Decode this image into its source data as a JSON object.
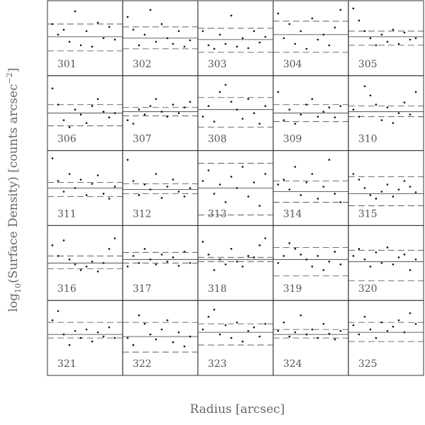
{
  "figure": {
    "xlabel": "Radius [arcsec]",
    "ylabel": {
      "base": "log",
      "sub": "10",
      "mid": "(Surface Density) [counts arcsec",
      "sup": "−2",
      "end": "]"
    }
  },
  "chart_data": [
    {
      "type": "scatter",
      "label": "301",
      "xlim": [
        0,
        1
      ],
      "ylim": [
        0,
        1
      ],
      "mean": 0.52,
      "dashed": [
        0.32,
        0.7
      ],
      "x": [
        0.04,
        0.12,
        0.2,
        0.28,
        0.36,
        0.44,
        0.52,
        0.6,
        0.68,
        0.76,
        0.84,
        0.92
      ],
      "values": [
        0.7,
        0.55,
        0.62,
        0.45,
        0.88,
        0.4,
        0.6,
        0.38,
        0.72,
        0.5,
        0.66,
        0.48
      ]
    },
    {
      "type": "scatter",
      "label": "302",
      "xlim": [
        0,
        1
      ],
      "ylim": [
        0,
        1
      ],
      "mean": 0.5,
      "dashed": [
        0.35,
        0.66
      ],
      "x": [
        0.04,
        0.12,
        0.2,
        0.28,
        0.36,
        0.44,
        0.52,
        0.6,
        0.68,
        0.76,
        0.84,
        0.92
      ],
      "values": [
        0.8,
        0.62,
        0.4,
        0.55,
        0.9,
        0.45,
        0.7,
        0.5,
        0.42,
        0.6,
        0.38,
        0.47
      ]
    },
    {
      "type": "scatter",
      "label": "303",
      "xlim": [
        0,
        1
      ],
      "ylim": [
        0,
        1
      ],
      "mean": 0.48,
      "dashed": [
        0.3,
        0.64
      ],
      "x": [
        0.04,
        0.12,
        0.2,
        0.28,
        0.36,
        0.44,
        0.52,
        0.6,
        0.68,
        0.76,
        0.84,
        0.92
      ],
      "values": [
        0.6,
        0.4,
        0.35,
        0.55,
        0.42,
        0.82,
        0.38,
        0.5,
        0.36,
        0.6,
        0.44,
        0.52
      ]
    },
    {
      "type": "scatter",
      "label": "304",
      "xlim": [
        0,
        1
      ],
      "ylim": [
        0,
        1
      ],
      "mean": 0.55,
      "dashed": [
        0.3,
        0.74
      ],
      "x": [
        0.04,
        0.12,
        0.2,
        0.28,
        0.36,
        0.44,
        0.52,
        0.6,
        0.68,
        0.76,
        0.84,
        0.92
      ],
      "values": [
        0.85,
        0.5,
        0.7,
        0.42,
        0.6,
        0.35,
        0.78,
        0.48,
        0.55,
        0.4,
        0.65,
        0.9
      ]
    },
    {
      "type": "scatter",
      "label": "305",
      "xlim": [
        0,
        1
      ],
      "ylim": [
        0,
        1
      ],
      "mean": 0.52,
      "dashed": [
        0.4,
        0.6
      ],
      "x": [
        0.04,
        0.12,
        0.2,
        0.28,
        0.36,
        0.44,
        0.52,
        0.6,
        0.68,
        0.76,
        0.84,
        0.92
      ],
      "values": [
        0.92,
        0.75,
        0.6,
        0.5,
        0.4,
        0.55,
        0.45,
        0.62,
        0.42,
        0.58,
        0.48,
        0.5
      ]
    },
    {
      "type": "scatter",
      "label": "306",
      "xlim": [
        0,
        1
      ],
      "ylim": [
        0,
        1
      ],
      "mean": 0.5,
      "dashed": [
        0.32,
        0.62
      ],
      "x": [
        0.04,
        0.12,
        0.2,
        0.28,
        0.36,
        0.44,
        0.52,
        0.6,
        0.68,
        0.76,
        0.84,
        0.92
      ],
      "values": [
        0.85,
        0.62,
        0.4,
        0.3,
        0.55,
        0.48,
        0.36,
        0.6,
        0.7,
        0.52,
        0.44,
        0.5
      ]
    },
    {
      "type": "scatter",
      "label": "307",
      "xlim": [
        0,
        1
      ],
      "ylim": [
        0,
        1
      ],
      "mean": 0.52,
      "dashed": [
        0.46,
        0.58
      ],
      "x": [
        0.04,
        0.12,
        0.2,
        0.28,
        0.36,
        0.44,
        0.52,
        0.6,
        0.68,
        0.76,
        0.84,
        0.92
      ],
      "values": [
        0.4,
        0.35,
        0.55,
        0.48,
        0.6,
        0.7,
        0.52,
        0.45,
        0.62,
        0.5,
        0.58,
        0.66
      ]
    },
    {
      "type": "scatter",
      "label": "308",
      "xlim": [
        0,
        1
      ],
      "ylim": [
        0,
        1
      ],
      "mean": 0.55,
      "dashed": [
        0.3,
        0.72
      ],
      "x": [
        0.04,
        0.12,
        0.2,
        0.28,
        0.36,
        0.44,
        0.52,
        0.6,
        0.68,
        0.76,
        0.84,
        0.92
      ],
      "values": [
        0.45,
        0.6,
        0.38,
        0.8,
        0.9,
        0.66,
        0.55,
        0.42,
        0.7,
        0.5,
        0.35,
        0.6
      ]
    },
    {
      "type": "scatter",
      "label": "309",
      "xlim": [
        0,
        1
      ],
      "ylim": [
        0,
        1
      ],
      "mean": 0.5,
      "dashed": [
        0.38,
        0.62
      ],
      "x": [
        0.04,
        0.12,
        0.2,
        0.28,
        0.36,
        0.44,
        0.52,
        0.6,
        0.68,
        0.76,
        0.84,
        0.92
      ],
      "values": [
        0.8,
        0.4,
        0.55,
        0.35,
        0.48,
        0.62,
        0.7,
        0.45,
        0.52,
        0.58,
        0.44,
        0.6
      ]
    },
    {
      "type": "scatter",
      "label": "310",
      "xlim": [
        0,
        1
      ],
      "ylim": [
        0,
        1
      ],
      "mean": 0.52,
      "dashed": [
        0.45,
        0.6
      ],
      "x": [
        0.04,
        0.12,
        0.2,
        0.28,
        0.36,
        0.44,
        0.52,
        0.6,
        0.68,
        0.76,
        0.84,
        0.92
      ],
      "values": [
        0.55,
        0.45,
        0.88,
        0.75,
        0.62,
        0.4,
        0.58,
        0.36,
        0.5,
        0.65,
        0.48,
        0.8
      ]
    },
    {
      "type": "scatter",
      "label": "311",
      "xlim": [
        0,
        1
      ],
      "ylim": [
        0,
        1
      ],
      "mean": 0.5,
      "dashed": [
        0.38,
        0.58
      ],
      "x": [
        0.04,
        0.12,
        0.2,
        0.28,
        0.36,
        0.44,
        0.52,
        0.6,
        0.68,
        0.76,
        0.84,
        0.92
      ],
      "values": [
        0.92,
        0.6,
        0.45,
        0.7,
        0.5,
        0.62,
        0.4,
        0.56,
        0.68,
        0.42,
        0.35,
        0.52
      ]
    },
    {
      "type": "scatter",
      "label": "312",
      "xlim": [
        0,
        1
      ],
      "ylim": [
        0,
        1
      ],
      "mean": 0.48,
      "dashed": [
        0.42,
        0.56
      ],
      "x": [
        0.04,
        0.12,
        0.2,
        0.28,
        0.36,
        0.44,
        0.52,
        0.6,
        0.68,
        0.76,
        0.84,
        0.92
      ],
      "values": [
        0.9,
        0.6,
        0.4,
        0.55,
        0.48,
        0.7,
        0.36,
        0.52,
        0.62,
        0.45,
        0.38,
        0.5
      ]
    },
    {
      "type": "scatter",
      "label": "313",
      "xlim": [
        0,
        1
      ],
      "ylim": [
        0,
        1
      ],
      "mean": 0.5,
      "dashed": [
        0.12,
        0.85
      ],
      "x": [
        0.04,
        0.12,
        0.2,
        0.28,
        0.36,
        0.44,
        0.52,
        0.6,
        0.68,
        0.76,
        0.84,
        0.92
      ],
      "values": [
        0.6,
        0.75,
        0.42,
        0.55,
        0.3,
        0.66,
        0.5,
        0.8,
        0.38,
        0.58,
        0.25,
        0.7
      ]
    },
    {
      "type": "scatter",
      "label": "314",
      "xlim": [
        0,
        1
      ],
      "ylim": [
        0,
        1
      ],
      "mean": 0.45,
      "dashed": [
        0.3,
        0.6
      ],
      "x": [
        0.04,
        0.12,
        0.2,
        0.28,
        0.36,
        0.44,
        0.52,
        0.6,
        0.68,
        0.76,
        0.84,
        0.92
      ],
      "values": [
        0.55,
        0.62,
        0.48,
        0.8,
        0.4,
        0.58,
        0.7,
        0.35,
        0.52,
        0.9,
        0.42,
        0.3
      ]
    },
    {
      "type": "scatter",
      "label": "315",
      "xlim": [
        0,
        1
      ],
      "ylim": [
        0,
        1
      ],
      "mean": 0.42,
      "dashed": [
        0.25,
        0.66
      ],
      "x": [
        0.04,
        0.12,
        0.2,
        0.28,
        0.36,
        0.44,
        0.52,
        0.6,
        0.68,
        0.76,
        0.84,
        0.92
      ],
      "values": [
        0.7,
        0.62,
        0.5,
        0.4,
        0.35,
        0.45,
        0.55,
        0.38,
        0.48,
        0.6,
        0.52,
        0.44
      ]
    },
    {
      "type": "scatter",
      "label": "316",
      "xlim": [
        0,
        1
      ],
      "ylim": [
        0,
        1
      ],
      "mean": 0.5,
      "dashed": [
        0.42,
        0.6
      ],
      "x": [
        0.04,
        0.12,
        0.2,
        0.28,
        0.36,
        0.44,
        0.52,
        0.6,
        0.68,
        0.76,
        0.84,
        0.92
      ],
      "values": [
        0.75,
        0.6,
        0.82,
        0.55,
        0.48,
        0.4,
        0.45,
        0.52,
        0.38,
        0.5,
        0.7,
        0.85
      ]
    },
    {
      "type": "scatter",
      "label": "317",
      "xlim": [
        0,
        1
      ],
      "ylim": [
        0,
        1
      ],
      "mean": 0.55,
      "dashed": [
        0.5,
        0.65
      ],
      "x": [
        0.04,
        0.12,
        0.2,
        0.28,
        0.36,
        0.44,
        0.52,
        0.6,
        0.68,
        0.76,
        0.84,
        0.92
      ],
      "values": [
        0.45,
        0.6,
        0.5,
        0.7,
        0.55,
        0.48,
        0.62,
        0.52,
        0.58,
        0.46,
        0.66,
        0.5
      ]
    },
    {
      "type": "scatter",
      "label": "318",
      "xlim": [
        0,
        1
      ],
      "ylim": [
        0,
        1
      ],
      "mean": 0.55,
      "dashed": [
        0.52,
        0.58
      ],
      "x": [
        0.04,
        0.12,
        0.2,
        0.28,
        0.36,
        0.44,
        0.52,
        0.6,
        0.68,
        0.76,
        0.84,
        0.92
      ],
      "values": [
        0.8,
        0.62,
        0.4,
        0.55,
        0.48,
        0.7,
        0.52,
        0.45,
        0.6,
        0.58,
        0.75,
        0.85
      ]
    },
    {
      "type": "scatter",
      "label": "319",
      "xlim": [
        0,
        1
      ],
      "ylim": [
        0,
        1
      ],
      "mean": 0.55,
      "dashed": [
        0.32,
        0.72
      ],
      "x": [
        0.04,
        0.12,
        0.2,
        0.28,
        0.36,
        0.44,
        0.52,
        0.6,
        0.68,
        0.76,
        0.84,
        0.92
      ],
      "values": [
        0.5,
        0.6,
        0.78,
        0.7,
        0.62,
        0.55,
        0.45,
        0.6,
        0.4,
        0.52,
        0.66,
        0.48
      ]
    },
    {
      "type": "scatter",
      "label": "320",
      "xlim": [
        0,
        1
      ],
      "ylim": [
        0,
        1
      ],
      "mean": 0.52,
      "dashed": [
        0.25,
        0.68
      ],
      "x": [
        0.04,
        0.12,
        0.2,
        0.28,
        0.36,
        0.44,
        0.52,
        0.6,
        0.68,
        0.76,
        0.84,
        0.92
      ],
      "values": [
        0.6,
        0.7,
        0.55,
        0.45,
        0.65,
        0.5,
        0.72,
        0.48,
        0.58,
        0.62,
        0.4,
        0.55
      ]
    },
    {
      "type": "scatter",
      "label": "321",
      "xlim": [
        0,
        1
      ],
      "ylim": [
        0,
        1
      ],
      "mean": 0.55,
      "dashed": [
        0.5,
        0.72
      ],
      "x": [
        0.04,
        0.12,
        0.2,
        0.28,
        0.36,
        0.44,
        0.52,
        0.6,
        0.68,
        0.76,
        0.84,
        0.92
      ],
      "values": [
        0.75,
        0.88,
        0.55,
        0.4,
        0.6,
        0.5,
        0.62,
        0.45,
        0.58,
        0.52,
        0.65,
        0.5
      ]
    },
    {
      "type": "scatter",
      "label": "322",
      "xlim": [
        0,
        1
      ],
      "ylim": [
        0,
        1
      ],
      "mean": 0.52,
      "dashed": [
        0.3,
        0.72
      ],
      "x": [
        0.04,
        0.12,
        0.2,
        0.28,
        0.36,
        0.44,
        0.52,
        0.6,
        0.68,
        0.76,
        0.84,
        0.92
      ],
      "values": [
        0.5,
        0.4,
        0.82,
        0.7,
        0.55,
        0.48,
        0.62,
        0.75,
        0.44,
        0.58,
        0.38,
        0.52
      ]
    },
    {
      "type": "scatter",
      "label": "323",
      "xlim": [
        0,
        1
      ],
      "ylim": [
        0,
        1
      ],
      "mean": 0.58,
      "dashed": [
        0.4,
        0.7
      ],
      "x": [
        0.04,
        0.12,
        0.2,
        0.28,
        0.36,
        0.44,
        0.52,
        0.6,
        0.68,
        0.76,
        0.84,
        0.92
      ],
      "values": [
        0.62,
        0.8,
        0.9,
        0.55,
        0.68,
        0.5,
        0.72,
        0.45,
        0.6,
        0.65,
        0.52,
        0.7
      ]
    },
    {
      "type": "scatter",
      "label": "324",
      "xlim": [
        0,
        1
      ],
      "ylim": [
        0,
        1
      ],
      "mean": 0.55,
      "dashed": [
        0.5,
        0.62
      ],
      "x": [
        0.04,
        0.12,
        0.2,
        0.28,
        0.36,
        0.44,
        0.52,
        0.6,
        0.68,
        0.76,
        0.84,
        0.92
      ],
      "values": [
        0.6,
        0.72,
        0.52,
        0.58,
        0.82,
        0.55,
        0.62,
        0.5,
        0.7,
        0.56,
        0.48,
        0.6
      ]
    },
    {
      "type": "scatter",
      "label": "325",
      "xlim": [
        0,
        1
      ],
      "ylim": [
        0,
        1
      ],
      "mean": 0.58,
      "dashed": [
        0.45,
        0.72
      ],
      "x": [
        0.04,
        0.12,
        0.2,
        0.28,
        0.36,
        0.44,
        0.52,
        0.6,
        0.68,
        0.76,
        0.84,
        0.92
      ],
      "values": [
        0.68,
        0.55,
        0.8,
        0.62,
        0.5,
        0.72,
        0.6,
        0.66,
        0.75,
        0.58,
        0.85,
        0.7
      ]
    }
  ]
}
